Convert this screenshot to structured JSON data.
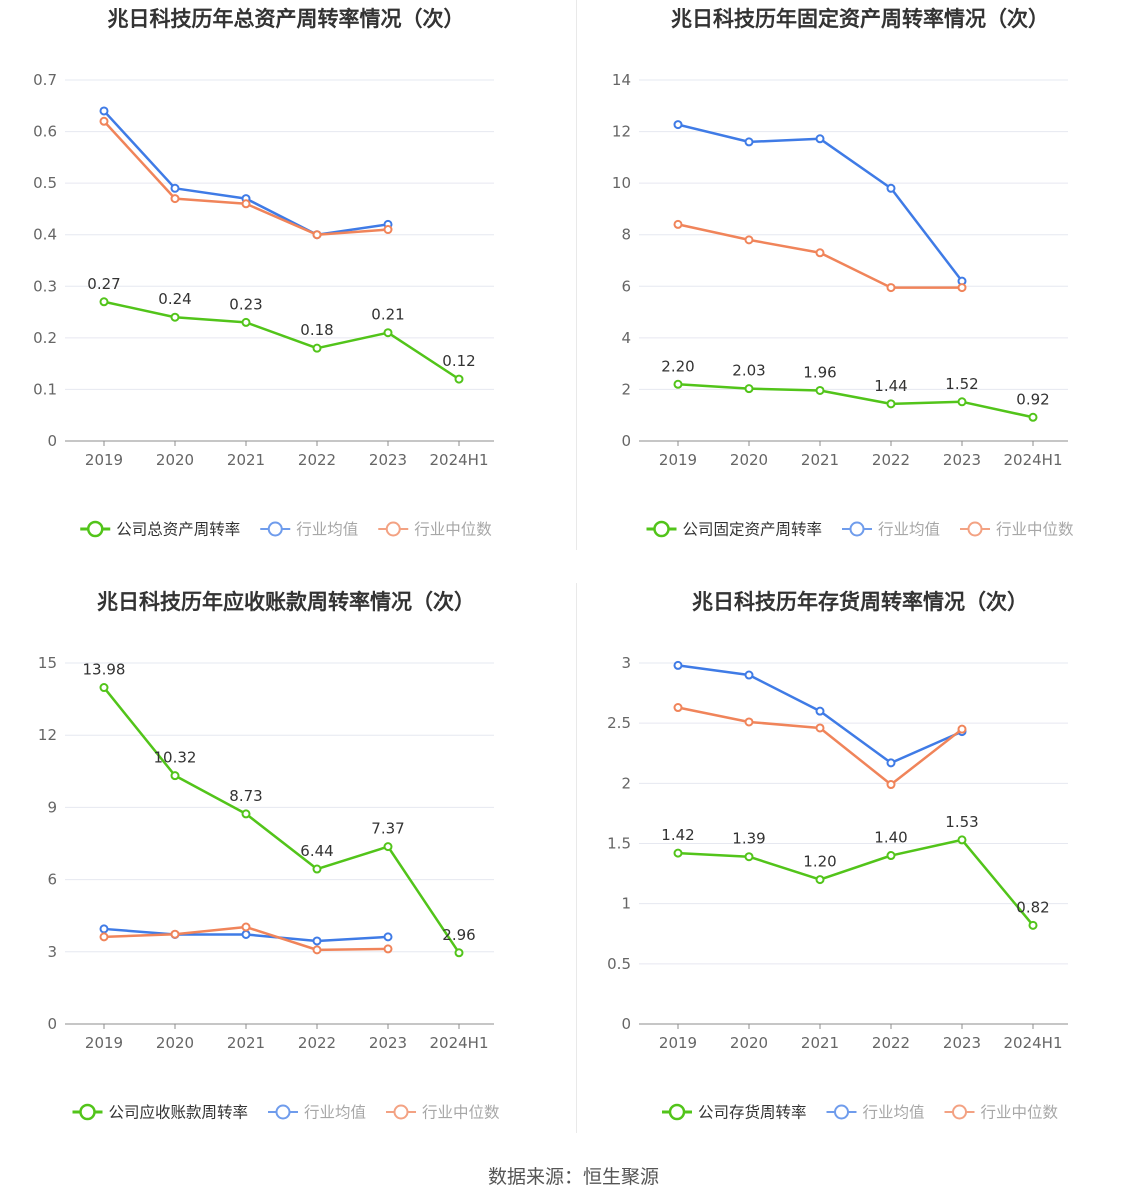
{
  "source": "数据来源：恒生聚源",
  "colors": {
    "company": "#52c41a",
    "avg": "#3f7be6",
    "median": "#f0845a",
    "grid": "#e6e8f0",
    "axis": "#8c8c8c",
    "text": "#333333",
    "label": "#666666"
  },
  "legend_labels": {
    "avg": "行业均值",
    "median": "行业中位数"
  },
  "chart_data": [
    {
      "type": "line",
      "title": "兆日科技历年总资产周转率情况（次）",
      "categories": [
        "2019",
        "2020",
        "2021",
        "2022",
        "2023",
        "2024H1"
      ],
      "yticks": [
        "0",
        "0.1",
        "0.2",
        "0.3",
        "0.4",
        "0.5",
        "0.6",
        "0.7"
      ],
      "ylim": [
        0,
        0.7
      ],
      "series": [
        {
          "name": "公司总资产周转率",
          "key": "company",
          "values": [
            0.27,
            0.24,
            0.23,
            0.18,
            0.21,
            0.12
          ],
          "labels": [
            "0.27",
            "0.24",
            "0.23",
            "0.18",
            "0.21",
            "0.12"
          ]
        },
        {
          "name": "行业均值",
          "key": "avg",
          "values": [
            0.64,
            0.49,
            0.47,
            0.4,
            0.42,
            null
          ]
        },
        {
          "name": "行业中位数",
          "key": "median",
          "values": [
            0.62,
            0.47,
            0.46,
            0.4,
            0.41,
            null
          ]
        }
      ],
      "legend": "bottom"
    },
    {
      "type": "line",
      "title": "兆日科技历年固定资产周转率情况（次）",
      "categories": [
        "2019",
        "2020",
        "2021",
        "2022",
        "2023",
        "2024H1"
      ],
      "yticks": [
        "0",
        "2",
        "4",
        "6",
        "8",
        "10",
        "12",
        "14"
      ],
      "ylim": [
        0,
        14
      ],
      "series": [
        {
          "name": "公司固定资产周转率",
          "key": "company",
          "values": [
            2.2,
            2.03,
            1.96,
            1.44,
            1.52,
            0.92
          ],
          "labels": [
            "2.20",
            "2.03",
            "1.96",
            "1.44",
            "1.52",
            "0.92"
          ]
        },
        {
          "name": "行业均值",
          "key": "avg",
          "values": [
            12.27,
            11.6,
            11.72,
            9.8,
            6.2,
            null
          ]
        },
        {
          "name": "行业中位数",
          "key": "median",
          "values": [
            8.4,
            7.8,
            7.3,
            5.95,
            5.95,
            null
          ]
        }
      ],
      "legend": "bottom"
    },
    {
      "type": "line",
      "title": "兆日科技历年应收账款周转率情况（次）",
      "categories": [
        "2019",
        "2020",
        "2021",
        "2022",
        "2023",
        "2024H1"
      ],
      "yticks": [
        "0",
        "3",
        "6",
        "9",
        "12",
        "15"
      ],
      "ylim": [
        0,
        15
      ],
      "series": [
        {
          "name": "公司应收账款周转率",
          "key": "company",
          "values": [
            13.98,
            10.32,
            8.73,
            6.44,
            7.37,
            2.96
          ],
          "labels": [
            "13.98",
            "10.32",
            "8.73",
            "6.44",
            "7.37",
            "2.96"
          ]
        },
        {
          "name": "行业均值",
          "key": "avg",
          "values": [
            3.95,
            3.72,
            3.72,
            3.45,
            3.62,
            null
          ]
        },
        {
          "name": "行业中位数",
          "key": "median",
          "values": [
            3.62,
            3.73,
            4.03,
            3.08,
            3.12,
            null
          ]
        }
      ],
      "legend": "bottom"
    },
    {
      "type": "line",
      "title": "兆日科技历年存货周转率情况（次）",
      "categories": [
        "2019",
        "2020",
        "2021",
        "2022",
        "2023",
        "2024H1"
      ],
      "yticks": [
        "0",
        "0.5",
        "1",
        "1.5",
        "2",
        "2.5",
        "3"
      ],
      "ylim": [
        0,
        3
      ],
      "series": [
        {
          "name": "公司存货周转率",
          "key": "company",
          "values": [
            1.42,
            1.39,
            1.2,
            1.4,
            1.53,
            0.82
          ],
          "labels": [
            "1.42",
            "1.39",
            "1.20",
            "1.40",
            "1.53",
            "0.82"
          ]
        },
        {
          "name": "行业均值",
          "key": "avg",
          "values": [
            2.98,
            2.9,
            2.6,
            2.17,
            2.43,
            null
          ]
        },
        {
          "name": "行业中位数",
          "key": "median",
          "values": [
            2.63,
            2.51,
            2.46,
            1.99,
            2.45,
            null
          ]
        }
      ],
      "legend": "bottom"
    }
  ]
}
